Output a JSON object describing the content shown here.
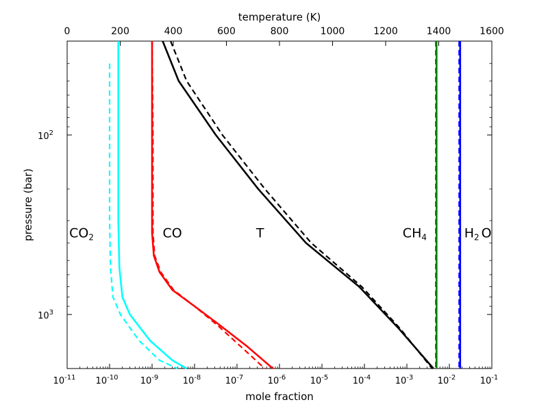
{
  "chart_data": {
    "type": "line",
    "title": "",
    "top_axis": {
      "label": "temperature (K)",
      "range": [
        0,
        1600
      ],
      "ticks": [
        0,
        200,
        400,
        600,
        800,
        1000,
        1200,
        1400,
        1600
      ],
      "tick_labels": [
        "0",
        "200",
        "400",
        "600",
        "800",
        "1000",
        "1200",
        "1400",
        "1600"
      ]
    },
    "bottom_axis": {
      "label": "mole fraction",
      "scale": "log",
      "range_exp": [
        -11,
        -1
      ],
      "tick_exponents": [
        -11,
        -10,
        -9,
        -8,
        -7,
        -6,
        -5,
        -4,
        -3,
        -2,
        -1
      ]
    },
    "y_axis": {
      "label": "pressure (bar)",
      "scale": "log",
      "inverted": true,
      "range": [
        30,
        2000
      ],
      "tick_exponents": [
        2,
        3
      ]
    },
    "series": [
      {
        "name": "CO2",
        "color": "#00ffff",
        "style": "solid",
        "axis": "mole fraction",
        "points": [
          [
            1.6e-10,
            30
          ],
          [
            1.6e-10,
            100
          ],
          [
            1.6e-10,
            300
          ],
          [
            1.7e-10,
            550
          ],
          [
            2e-10,
            800
          ],
          [
            3e-10,
            1000
          ],
          [
            9e-10,
            1400
          ],
          [
            3e-09,
            1800
          ],
          [
            6.5e-09,
            2000
          ]
        ]
      },
      {
        "name": "CO2 (dashed)",
        "color": "#00ffff",
        "style": "dashed",
        "axis": "mole fraction",
        "points": [
          [
            1e-10,
            40
          ],
          [
            1e-10,
            100
          ],
          [
            1e-10,
            300
          ],
          [
            1.05e-10,
            550
          ],
          [
            1.2e-10,
            800
          ],
          [
            1.8e-10,
            1000
          ],
          [
            5e-10,
            1400
          ],
          [
            1.5e-09,
            1800
          ],
          [
            4e-09,
            2000
          ]
        ]
      },
      {
        "name": "CO",
        "color": "#ff0000",
        "style": "solid",
        "axis": "mole fraction",
        "points": [
          [
            1e-09,
            30
          ],
          [
            1e-09,
            100
          ],
          [
            1e-09,
            350
          ],
          [
            1.1e-09,
            470
          ],
          [
            1.5e-09,
            580
          ],
          [
            3e-09,
            730
          ],
          [
            1e-08,
            900
          ],
          [
            4e-08,
            1150
          ],
          [
            1.7e-07,
            1500
          ],
          [
            7e-07,
            2000
          ]
        ]
      },
      {
        "name": "CO (dashed)",
        "color": "#ff0000",
        "style": "dashed",
        "axis": "mole fraction",
        "points": [
          [
            1e-09,
            30
          ],
          [
            1.05e-09,
            100
          ],
          [
            1.05e-09,
            350
          ],
          [
            1.15e-09,
            470
          ],
          [
            1.6e-09,
            580
          ],
          [
            3.2e-09,
            730
          ],
          [
            1e-08,
            900
          ],
          [
            3.5e-08,
            1150
          ],
          [
            1.2e-07,
            1500
          ],
          [
            4.5e-07,
            2000
          ]
        ]
      },
      {
        "name": "T",
        "color": "#000000",
        "style": "solid",
        "axis": "temperature",
        "points": [
          [
            360,
            30
          ],
          [
            420,
            50
          ],
          [
            560,
            100
          ],
          [
            720,
            200
          ],
          [
            900,
            400
          ],
          [
            1100,
            700
          ],
          [
            1250,
            1200
          ],
          [
            1380,
            2000
          ]
        ]
      },
      {
        "name": "T (dashed)",
        "color": "#000000",
        "style": "dashed",
        "axis": "temperature",
        "points": [
          [
            390,
            30
          ],
          [
            450,
            50
          ],
          [
            585,
            100
          ],
          [
            745,
            200
          ],
          [
            920,
            400
          ],
          [
            1110,
            700
          ],
          [
            1255,
            1200
          ],
          [
            1375,
            2000
          ]
        ]
      },
      {
        "name": "CH4",
        "color": "#008000",
        "style": "solid",
        "axis": "mole fraction",
        "points": [
          [
            0.005,
            30
          ],
          [
            0.005,
            2000
          ]
        ]
      },
      {
        "name": "CH4 (dashed)",
        "color": "#008000",
        "style": "dashed",
        "axis": "mole fraction",
        "points": [
          [
            0.0048,
            30
          ],
          [
            0.0048,
            2000
          ]
        ]
      },
      {
        "name": "H2O",
        "color": "#0000ff",
        "style": "solid",
        "axis": "mole fraction",
        "points": [
          [
            0.018,
            30
          ],
          [
            0.018,
            2000
          ]
        ]
      },
      {
        "name": "H2O (dashed)",
        "color": "#0000ff",
        "style": "dashed",
        "axis": "mole fraction",
        "points": [
          [
            0.017,
            30
          ],
          [
            0.017,
            2000
          ]
        ]
      }
    ],
    "annotations": [
      {
        "base": "CO",
        "sub": "2",
        "x_exp": -10.95,
        "p": 350
      },
      {
        "base": "CO",
        "sub": "",
        "x_exp": -8.75,
        "p": 350
      },
      {
        "base": "T",
        "sub": "",
        "x_exp": -6.55,
        "p": 350
      },
      {
        "base": "CH",
        "sub": "4",
        "x_exp": -3.1,
        "p": 350
      },
      {
        "base": "H",
        "sub": "2",
        "x_exp": -1.65,
        "p": 350,
        "tail": "O"
      }
    ]
  }
}
